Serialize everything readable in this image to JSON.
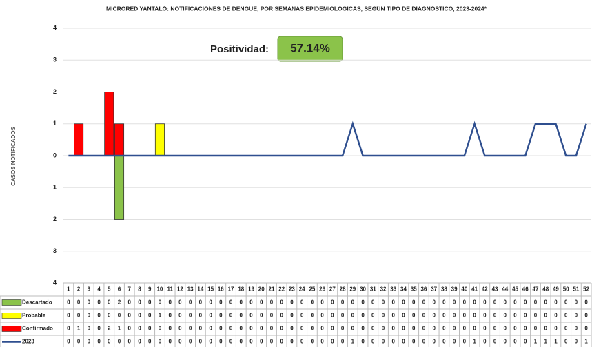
{
  "chart_data": {
    "type": "bar",
    "title": "MICRORED YANTALÓ: NOTIFICACIONES DE DENGUE, POR SEMANAS EPIDEMIOLÓGICAS, SEGÚN TIPO DE DIAGNÓSTICO, 2023-2024*",
    "y_label": "CASOS NOTIFICADOS",
    "annotation_label": "Positividad:",
    "annotation_value": "57.14%",
    "categories": [
      1,
      2,
      3,
      4,
      5,
      6,
      7,
      8,
      9,
      10,
      11,
      12,
      13,
      14,
      15,
      16,
      17,
      18,
      19,
      20,
      21,
      22,
      23,
      24,
      25,
      26,
      27,
      28,
      29,
      30,
      31,
      32,
      33,
      34,
      35,
      36,
      37,
      38,
      39,
      40,
      41,
      42,
      43,
      44,
      45,
      46,
      47,
      48,
      49,
      50,
      51,
      52
    ],
    "series": [
      {
        "name": "Descartado",
        "color": "#8bc34a",
        "type": "bar",
        "inverted": true,
        "values": [
          0,
          0,
          0,
          0,
          0,
          2,
          0,
          0,
          0,
          0,
          0,
          0,
          0,
          0,
          0,
          0,
          0,
          0,
          0,
          0,
          0,
          0,
          0,
          0,
          0,
          0,
          0,
          0,
          0,
          0,
          0,
          0,
          0,
          0,
          0,
          0,
          0,
          0,
          0,
          0,
          0,
          0,
          0,
          0,
          0,
          0,
          0,
          0,
          0,
          0,
          0,
          0
        ]
      },
      {
        "name": "Probable",
        "color": "#ffff00",
        "type": "bar",
        "values": [
          0,
          0,
          0,
          0,
          0,
          0,
          0,
          0,
          0,
          1,
          0,
          0,
          0,
          0,
          0,
          0,
          0,
          0,
          0,
          0,
          0,
          0,
          0,
          0,
          0,
          0,
          0,
          0,
          0,
          0,
          0,
          0,
          0,
          0,
          0,
          0,
          0,
          0,
          0,
          0,
          0,
          0,
          0,
          0,
          0,
          0,
          0,
          0,
          0,
          0,
          0,
          0
        ]
      },
      {
        "name": "Confirmado",
        "color": "#ff0000",
        "type": "bar",
        "values": [
          0,
          1,
          0,
          0,
          2,
          1,
          0,
          0,
          0,
          0,
          0,
          0,
          0,
          0,
          0,
          0,
          0,
          0,
          0,
          0,
          0,
          0,
          0,
          0,
          0,
          0,
          0,
          0,
          0,
          0,
          0,
          0,
          0,
          0,
          0,
          0,
          0,
          0,
          0,
          0,
          0,
          0,
          0,
          0,
          0,
          0,
          0,
          0,
          0,
          0,
          0,
          0
        ]
      },
      {
        "name": "2023",
        "color": "#2f4f8f",
        "type": "line",
        "values": [
          0,
          0,
          0,
          0,
          0,
          0,
          0,
          0,
          0,
          0,
          0,
          0,
          0,
          0,
          0,
          0,
          0,
          0,
          0,
          0,
          0,
          0,
          0,
          0,
          0,
          0,
          0,
          0,
          1,
          0,
          0,
          0,
          0,
          0,
          0,
          0,
          0,
          0,
          0,
          0,
          1,
          0,
          0,
          0,
          0,
          0,
          1,
          1,
          1,
          0,
          0,
          1
        ]
      }
    ],
    "ylim": [
      -4,
      4
    ],
    "yticks": [
      {
        "value": -4,
        "label": "4"
      },
      {
        "value": -3,
        "label": "3"
      },
      {
        "value": -2,
        "label": "2"
      },
      {
        "value": -1,
        "label": "1"
      },
      0,
      1,
      2,
      3,
      4
    ],
    "grid": true
  }
}
